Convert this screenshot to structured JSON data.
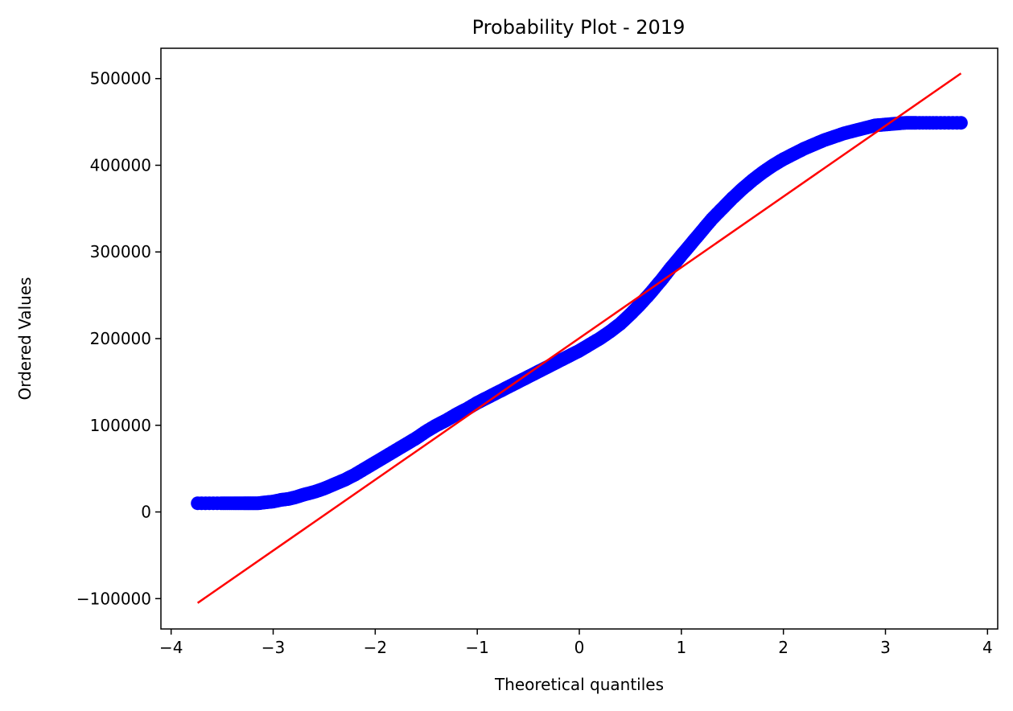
{
  "chart_data": {
    "type": "scatter",
    "title": "Probability Plot - 2019",
    "xlabel": "Theoretical quantiles",
    "ylabel": "Ordered Values",
    "xlim": [
      -4.1,
      4.1
    ],
    "ylim": [
      -135000,
      535000
    ],
    "x_ticks": [
      -4,
      -3,
      -2,
      -1,
      0,
      1,
      2,
      3,
      4
    ],
    "x_tick_labels": [
      "−4",
      "−3",
      "−2",
      "−1",
      "0",
      "1",
      "2",
      "3",
      "4"
    ],
    "y_ticks": [
      -100000,
      0,
      100000,
      200000,
      300000,
      400000,
      500000
    ],
    "y_tick_labels": [
      "−100000",
      "0",
      "100000",
      "200000",
      "300000",
      "400000",
      "500000"
    ],
    "grid": false,
    "legend": "none",
    "points_color": "#0000ff",
    "line_color": "#ff0000",
    "points": [
      [
        -3.74,
        10000
      ],
      [
        -3.51,
        10000
      ],
      [
        -3.39,
        10000
      ],
      [
        -3.29,
        10000
      ],
      [
        -3.22,
        10000
      ],
      [
        -3.15,
        10000
      ],
      [
        -3.08,
        11000
      ],
      [
        -3.0,
        12000
      ],
      [
        -2.92,
        14000
      ],
      [
        -2.85,
        15000
      ],
      [
        -2.78,
        17000
      ],
      [
        -2.7,
        20000
      ],
      [
        -2.6,
        23000
      ],
      [
        -2.5,
        27000
      ],
      [
        -2.4,
        32000
      ],
      [
        -2.3,
        37000
      ],
      [
        -2.2,
        43000
      ],
      [
        -2.1,
        50000
      ],
      [
        -2.0,
        57000
      ],
      [
        -1.9,
        64000
      ],
      [
        -1.8,
        71000
      ],
      [
        -1.7,
        78000
      ],
      [
        -1.6,
        85000
      ],
      [
        -1.5,
        93000
      ],
      [
        -1.4,
        100000
      ],
      [
        -1.3,
        106000
      ],
      [
        -1.2,
        113000
      ],
      [
        -1.1,
        119000
      ],
      [
        -1.0,
        126000
      ],
      [
        -0.9,
        132000
      ],
      [
        -0.8,
        138000
      ],
      [
        -0.7,
        144000
      ],
      [
        -0.6,
        150000
      ],
      [
        -0.5,
        156000
      ],
      [
        -0.4,
        162000
      ],
      [
        -0.3,
        168000
      ],
      [
        -0.2,
        174000
      ],
      [
        -0.1,
        180000
      ],
      [
        0.0,
        186000
      ],
      [
        0.1,
        193000
      ],
      [
        0.2,
        200000
      ],
      [
        0.3,
        208000
      ],
      [
        0.4,
        217000
      ],
      [
        0.5,
        228000
      ],
      [
        0.6,
        240000
      ],
      [
        0.7,
        253000
      ],
      [
        0.8,
        267000
      ],
      [
        0.9,
        282000
      ],
      [
        1.0,
        296000
      ],
      [
        1.1,
        310000
      ],
      [
        1.2,
        324000
      ],
      [
        1.3,
        338000
      ],
      [
        1.4,
        350000
      ],
      [
        1.5,
        362000
      ],
      [
        1.6,
        373000
      ],
      [
        1.7,
        383000
      ],
      [
        1.8,
        392000
      ],
      [
        1.9,
        400000
      ],
      [
        2.0,
        407000
      ],
      [
        2.1,
        413000
      ],
      [
        2.2,
        419000
      ],
      [
        2.3,
        424000
      ],
      [
        2.4,
        429000
      ],
      [
        2.5,
        433000
      ],
      [
        2.6,
        437000
      ],
      [
        2.7,
        440000
      ],
      [
        2.8,
        443000
      ],
      [
        2.9,
        446000
      ],
      [
        3.0,
        447000
      ],
      [
        3.1,
        448000
      ],
      [
        3.2,
        449000
      ],
      [
        3.3,
        449000
      ],
      [
        3.5,
        449000
      ],
      [
        3.74,
        449000
      ]
    ],
    "fit_line": {
      "x": [
        -3.74,
        3.74
      ],
      "y": [
        -105000,
        506000
      ]
    }
  }
}
